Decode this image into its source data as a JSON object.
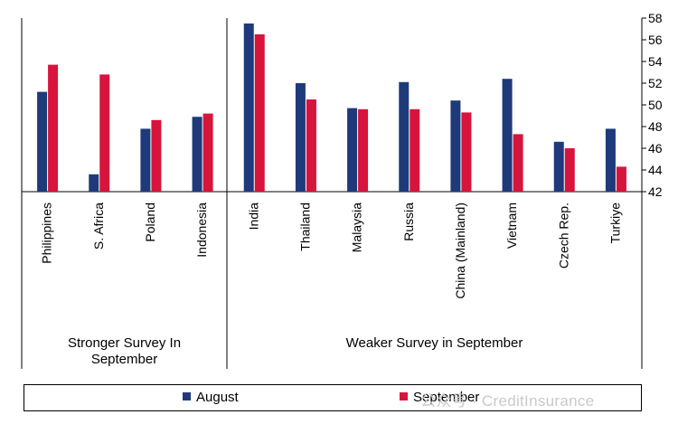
{
  "chart_data": {
    "type": "bar",
    "categories": [
      "Philippines",
      "S. Africa",
      "Poland",
      "Indonesia",
      "India",
      "Thailand",
      "Malaysia",
      "Russia",
      "China (Mainland)",
      "Vietnam",
      "Czech Rep.",
      "Turkiye"
    ],
    "series": [
      {
        "name": "August",
        "color": "#1f3a7a",
        "values": [
          51.2,
          43.6,
          47.8,
          48.9,
          57.5,
          52.0,
          49.7,
          52.1,
          50.4,
          52.4,
          46.6,
          47.8
        ]
      },
      {
        "name": "September",
        "color": "#d6143c",
        "values": [
          53.7,
          52.8,
          48.6,
          49.2,
          56.5,
          50.5,
          49.6,
          49.6,
          49.3,
          47.3,
          46.0,
          44.3
        ]
      }
    ],
    "ylim": [
      42,
      58
    ],
    "yticks": [
      "42",
      "44",
      "46",
      "48",
      "50",
      "52",
      "54",
      "56",
      "58"
    ],
    "groups": [
      {
        "label_line1": "Stronger Survey In",
        "label_line2": "September"
      },
      {
        "label_line1": "Weaker Survey in September",
        "label_line2": ""
      }
    ],
    "legend_position": "bottom",
    "grid": false
  },
  "watermark": "公众号 · CreditInsurance"
}
